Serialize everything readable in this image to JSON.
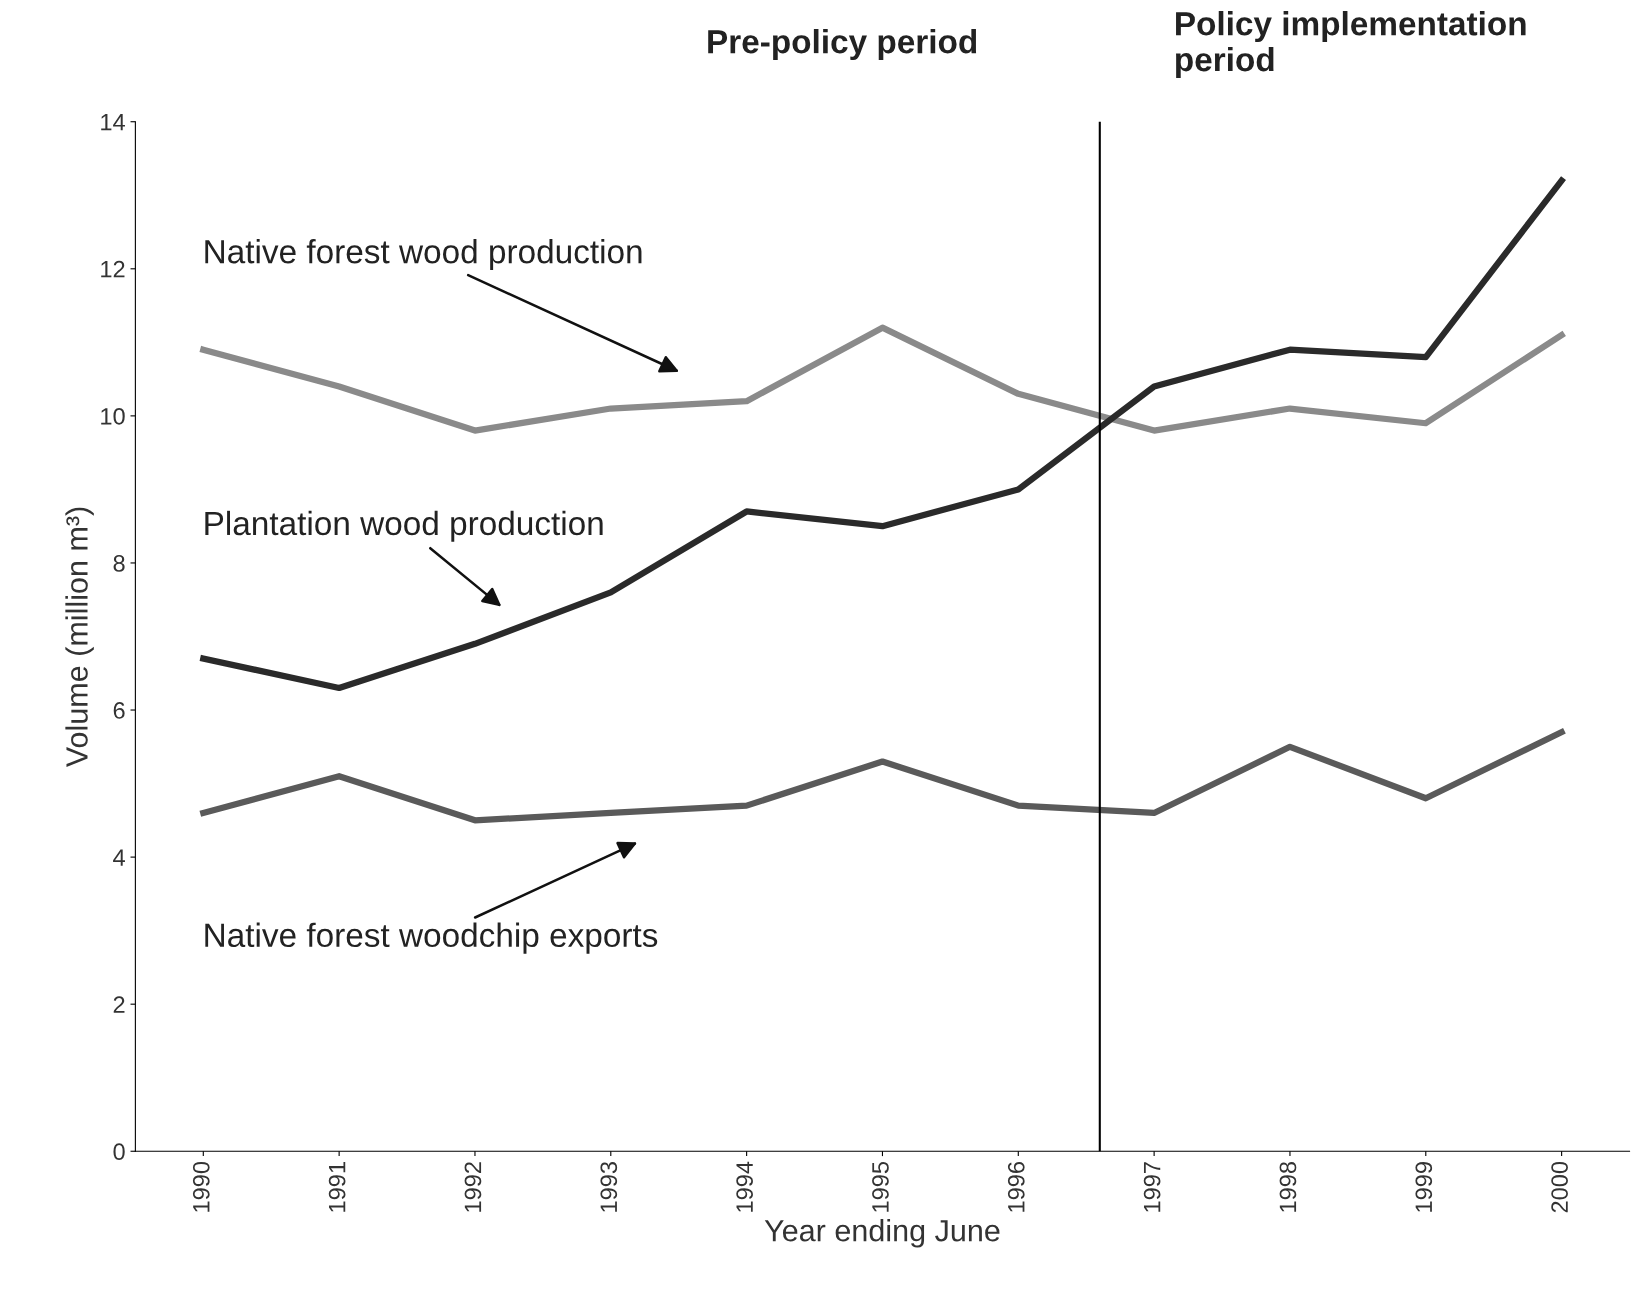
{
  "chart_data": {
    "type": "line",
    "xlabel": "Year ending June",
    "ylabel": "Volume (million m³)",
    "x": [
      1990,
      1991,
      1992,
      1993,
      1994,
      1995,
      1996,
      1997,
      1998,
      1999,
      2000
    ],
    "xlim": [
      1989.5,
      2000.5
    ],
    "xticks": [
      1990,
      1991,
      1992,
      1993,
      1994,
      1995,
      1996,
      1997,
      1998,
      1999,
      2000
    ],
    "ylim": [
      0,
      14
    ],
    "yticks": [
      0,
      2,
      4,
      6,
      8,
      10,
      12,
      14
    ],
    "grid": false,
    "legend": false,
    "marker": "none",
    "line_style": "solid",
    "series": [
      {
        "color": "#8a8a8a",
        "values": [
          10.9,
          10.4,
          9.8,
          10.1,
          10.2,
          11.2,
          10.3,
          9.8,
          10.1,
          9.9,
          11.1
        ]
      },
      {
        "color": "#2a2a2a",
        "values": [
          6.7,
          6.3,
          6.9,
          7.6,
          8.7,
          8.5,
          9.0,
          10.4,
          10.9,
          10.8,
          13.2
        ]
      },
      {
        "color": "#5a5a5a",
        "values": [
          4.6,
          5.1,
          4.5,
          4.6,
          4.7,
          5.3,
          4.7,
          4.6,
          5.5,
          4.8,
          5.7
        ]
      }
    ],
    "ref_lines": [
      {
        "axis": "x",
        "value": 1996.6,
        "label": null,
        "color": "#000000",
        "line_style": "solid"
      }
    ],
    "annotations": [
      "Native forest wood production",
      "Plantation wood production",
      "Native forest woodchip exports",
      "Pre-policy period",
      "Policy implementation period"
    ]
  }
}
